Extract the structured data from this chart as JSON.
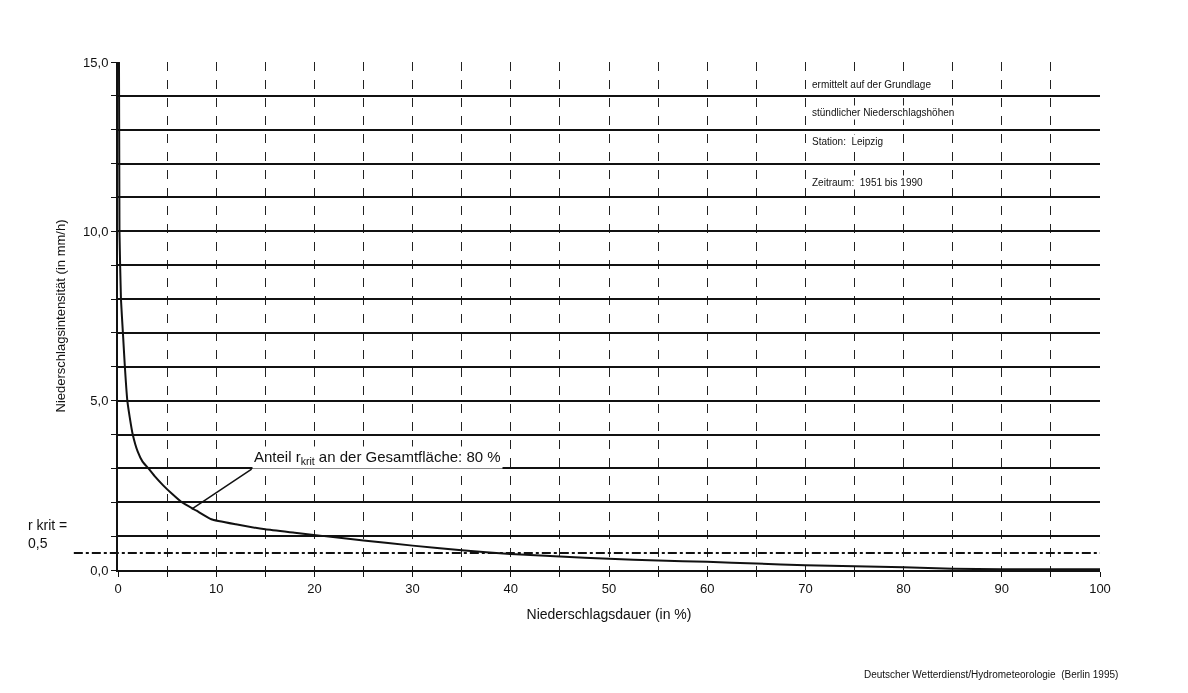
{
  "chart_data": {
    "type": "line",
    "xlabel": "Niederschlagsdauer (in %)",
    "ylabel": "Niederschlagsintensität (in mm/h)",
    "x": [
      0.1,
      0.15,
      0.3,
      0.5,
      0.7,
      0.95,
      1.2,
      1.5,
      2,
      2.5,
      3.1,
      3.8,
      4.6,
      5.5,
      6.5,
      8,
      9.5,
      12,
      15,
      18,
      21,
      25,
      30,
      35,
      40,
      45,
      50,
      55,
      60,
      65,
      70,
      75,
      80,
      85,
      90,
      95,
      100
    ],
    "series": [
      {
        "color": "#111111",
        "values": [
          15,
          10,
          8,
          7,
          6,
          5,
          4.5,
          4,
          3.5,
          3.2,
          3,
          2.75,
          2.5,
          2.25,
          2,
          1.75,
          1.5,
          1.35,
          1.2,
          1.1,
          1.0,
          0.87,
          0.72,
          0.58,
          0.47,
          0.4,
          0.33,
          0.28,
          0.24,
          0.19,
          0.14,
          0.11,
          0.08,
          0.04,
          0.02,
          0.02,
          0.02
        ]
      }
    ],
    "xlim": [
      0,
      100
    ],
    "ylim": [
      0,
      15
    ],
    "xticks": [
      0,
      {
        "value": 5,
        "label": null
      },
      10,
      {
        "value": 15,
        "label": null
      },
      20,
      {
        "value": 25,
        "label": null
      },
      30,
      {
        "value": 35,
        "label": null
      },
      40,
      {
        "value": 45,
        "label": null
      },
      50,
      {
        "value": 55,
        "label": null
      },
      60,
      {
        "value": 65,
        "label": null
      },
      70,
      {
        "value": 75,
        "label": null
      },
      80,
      {
        "value": 85,
        "label": null
      },
      90,
      {
        "value": 95,
        "label": null
      },
      100
    ],
    "yticks": [
      {
        "value": 0,
        "label": "0,0"
      },
      {
        "value": 1,
        "label": null
      },
      {
        "value": 2,
        "label": null
      },
      {
        "value": 3,
        "label": null
      },
      {
        "value": 4,
        "label": null
      },
      {
        "value": 5,
        "label": "5,0"
      },
      {
        "value": 6,
        "label": null
      },
      {
        "value": 7,
        "label": null
      },
      {
        "value": 8,
        "label": null
      },
      {
        "value": 9,
        "label": null
      },
      {
        "value": 10,
        "label": "10,0"
      },
      {
        "value": 11,
        "label": null
      },
      {
        "value": 12,
        "label": null
      },
      {
        "value": 13,
        "label": null
      },
      {
        "value": 14,
        "label": null
      },
      {
        "value": 15,
        "label": "15,0"
      }
    ],
    "grid": true,
    "marker": "none",
    "line_style": "solid",
    "ref_lines": [
      {
        "axis": "y",
        "value": 0.5,
        "label": "r krit =\n0,5",
        "color": "#111111",
        "line_style": "dashdot"
      }
    ],
    "annotations": [
      {
        "text": "Anteil r$_{krit}$ an der Gesamtfläche: 80 %",
        "x": 7.5,
        "y": 1.8
      },
      "ermittelt auf der Grundlage",
      "stündlicher Niederschlagshöhen",
      "Station:  Leipzig",
      "Zeitraum:  1951 bis 1990",
      "Deutscher Wetterdienst/Hydrometeorologie  (Berlin 1995)"
    ]
  }
}
